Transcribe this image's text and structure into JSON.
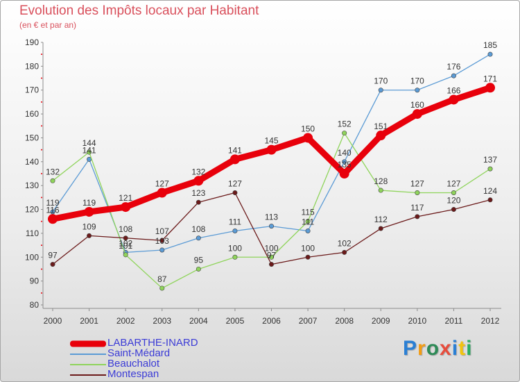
{
  "header": {
    "title": "Evolution des Impôts locaux par Habitant",
    "subtitle": "(en € et par an)"
  },
  "brand": {
    "text": "Proxiti",
    "colors": [
      "#2a7fd4",
      "#f39c12",
      "#2e8b57",
      "#e74c3c",
      "#2a7fd4",
      "#f1c40f",
      "#27ae60"
    ]
  },
  "chart_data": {
    "type": "line",
    "title": "Evolution des Impôts locaux par Habitant",
    "subtitle": "(en € et par an)",
    "x": [
      "2000",
      "2001",
      "2002",
      "2003",
      "2004",
      "2005",
      "2006",
      "2007",
      "2008",
      "2009",
      "2010",
      "2011",
      "2012"
    ],
    "yticks": [
      "80",
      "90",
      "100",
      "110",
      "120",
      "130",
      "140",
      "150",
      "160",
      "170",
      "180",
      "190"
    ],
    "ylim": [
      80,
      190
    ],
    "grid": false,
    "legend_position": "bottom-left",
    "series": [
      {
        "name": "LABARTHE-INARD",
        "color": "#e8000b",
        "emphasis": true,
        "values": [
          116,
          119,
          121,
          127,
          132,
          141,
          145,
          150,
          135,
          151,
          160,
          166,
          171
        ],
        "labels": [
          "116",
          "119",
          "121",
          "127",
          "132",
          "141",
          "145",
          "150",
          "135",
          "151",
          "160",
          "166",
          "171"
        ]
      },
      {
        "name": "Saint-Médard",
        "color": "#5b9bd5",
        "emphasis": false,
        "values": [
          119,
          141,
          102,
          103,
          108,
          111,
          113,
          111,
          140,
          170,
          170,
          176,
          185
        ],
        "labels": [
          "119",
          "141",
          "102",
          "103",
          "108",
          "111",
          "113",
          "111",
          "140",
          "170",
          "170",
          "176",
          "185"
        ]
      },
      {
        "name": "Beauchalot",
        "color": "#8fd45b",
        "emphasis": false,
        "values": [
          132,
          144,
          101,
          87,
          95,
          100,
          100,
          115,
          152,
          128,
          127,
          127,
          137
        ],
        "labels": [
          "132",
          "144",
          "101",
          "87",
          "95",
          "100",
          "100",
          "115",
          "152",
          "128",
          "127",
          "127",
          "137"
        ]
      },
      {
        "name": "Montespan",
        "color": "#6b1a1a",
        "emphasis": false,
        "values": [
          97,
          109,
          108,
          107,
          123,
          127,
          97,
          100,
          102,
          112,
          117,
          120,
          124
        ],
        "labels": [
          "97",
          "109",
          "108",
          "107",
          "123",
          "127",
          "97",
          "100",
          "102",
          "112",
          "117",
          "120",
          "124"
        ]
      }
    ]
  }
}
